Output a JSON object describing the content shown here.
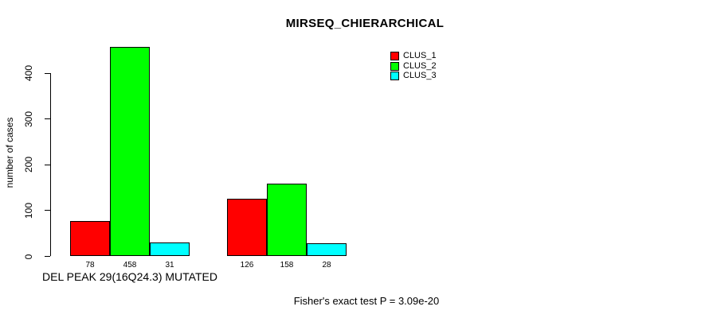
{
  "chart_data": {
    "type": "bar",
    "title": "MIRSEQ_CHIERARCHICAL",
    "ylabel": "number of cases",
    "annotation": "Fisher's exact test P = 3.09e-20",
    "categories": [
      "DEL PEAK 29(16Q24.3) MUTATED",
      ""
    ],
    "series": [
      {
        "name": "CLUS_1",
        "color": "#ff0000",
        "values": [
          78,
          126
        ]
      },
      {
        "name": "CLUS_2",
        "color": "#00ff00",
        "values": [
          458,
          158
        ]
      },
      {
        "name": "CLUS_3",
        "color": "#00ffff",
        "values": [
          31,
          28
        ]
      }
    ],
    "yticks": [
      0,
      100,
      200,
      300,
      400
    ],
    "ylim": [
      0,
      460
    ],
    "grid": false,
    "legend_position": "top-right",
    "bar_values_shown": true
  }
}
